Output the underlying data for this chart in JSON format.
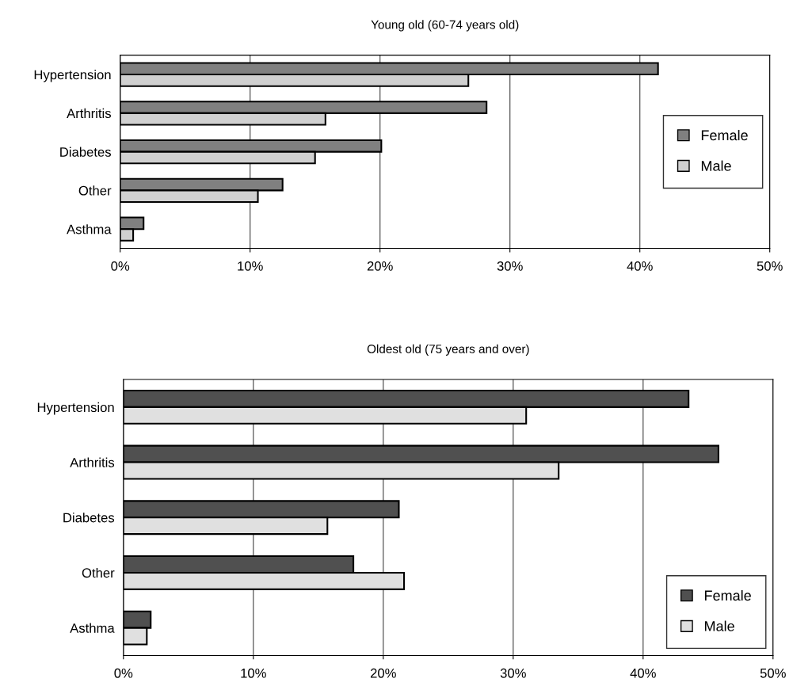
{
  "chart_data": [
    {
      "type": "bar",
      "orientation": "horizontal",
      "title": "Young old (60-74 years old)",
      "categories": [
        "Hypertension",
        "Arthritis",
        "Diabetes",
        "Other",
        "Asthma"
      ],
      "series": [
        {
          "name": "Female",
          "color": "#808080",
          "values": [
            41.4,
            28.2,
            20.1,
            12.5,
            1.8
          ]
        },
        {
          "name": "Male",
          "color": "#d0d0d0",
          "values": [
            26.8,
            15.8,
            15.0,
            10.6,
            1.0
          ]
        }
      ],
      "xlim": [
        0,
        50
      ],
      "xticks": [
        {
          "value": 0,
          "label": "0%"
        },
        {
          "value": 10,
          "label": "10%"
        },
        {
          "value": 20,
          "label": "20%"
        },
        {
          "value": 30,
          "label": "30%"
        },
        {
          "value": 40,
          "label": "40%"
        },
        {
          "value": 50,
          "label": "50%"
        }
      ],
      "grid": "x",
      "legend": "right"
    },
    {
      "type": "bar",
      "orientation": "horizontal",
      "title": "Oldest old (75 years and over)",
      "categories": [
        "Hypertension",
        "Arthritis",
        "Diabetes",
        "Other",
        "Asthma"
      ],
      "series": [
        {
          "name": "Female",
          "color": "#505050",
          "values": [
            43.5,
            45.8,
            21.2,
            17.7,
            2.1
          ]
        },
        {
          "name": "Male",
          "color": "#e0e0e0",
          "values": [
            31.0,
            33.5,
            15.7,
            21.6,
            1.8
          ]
        }
      ],
      "xlim": [
        0,
        50
      ],
      "xticks": [
        {
          "value": 0,
          "label": "0%"
        },
        {
          "value": 10,
          "label": "10%"
        },
        {
          "value": 20,
          "label": "20%"
        },
        {
          "value": 30,
          "label": "30%"
        },
        {
          "value": 40,
          "label": "40%"
        },
        {
          "value": 50,
          "label": "50%"
        }
      ],
      "grid": "x",
      "legend": "lower right"
    }
  ]
}
